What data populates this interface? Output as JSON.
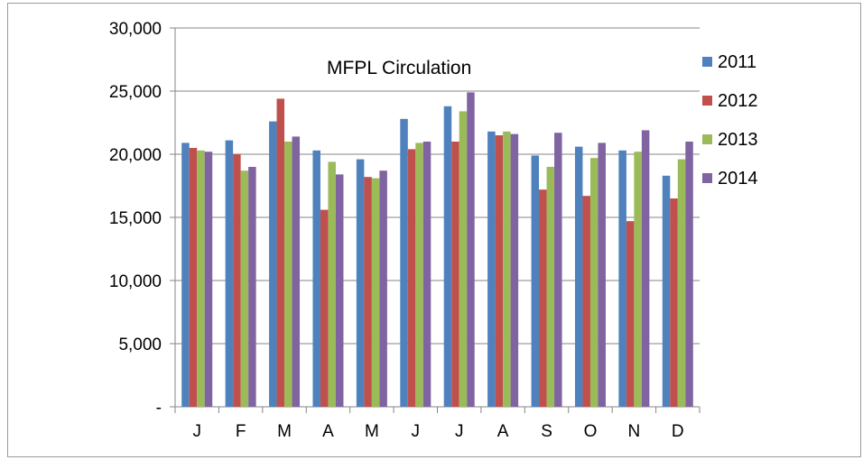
{
  "chart_data": {
    "type": "bar",
    "title": "MFPL Circulation",
    "categories": [
      "J",
      "F",
      "M",
      "A",
      "M",
      "J",
      "J",
      "A",
      "S",
      "O",
      "N",
      "D"
    ],
    "y_ticks": [
      "-",
      "5,000",
      "10,000",
      "15,000",
      "20,000",
      "25,000",
      "30,000"
    ],
    "ylim": [
      0,
      30000
    ],
    "grid": true,
    "legend_position": "right",
    "xlabel": "",
    "ylabel": "",
    "series": [
      {
        "name": "2011",
        "color": "#4f81bd",
        "values": [
          20900,
          21100,
          22600,
          20300,
          19600,
          22800,
          23800,
          21800,
          19900,
          20600,
          20300,
          18300
        ]
      },
      {
        "name": "2012",
        "color": "#c0504d",
        "values": [
          20500,
          20000,
          24400,
          15600,
          18200,
          20400,
          21000,
          21500,
          17200,
          16700,
          14700,
          16500
        ]
      },
      {
        "name": "2013",
        "color": "#9bbb59",
        "values": [
          20300,
          18700,
          21000,
          19400,
          18100,
          20900,
          23400,
          21800,
          19000,
          19700,
          20200,
          19600
        ]
      },
      {
        "name": "2014",
        "color": "#8064a2",
        "values": [
          20200,
          19000,
          21400,
          18400,
          18700,
          21000,
          24900,
          21600,
          21700,
          20900,
          21900,
          21000
        ]
      }
    ]
  }
}
